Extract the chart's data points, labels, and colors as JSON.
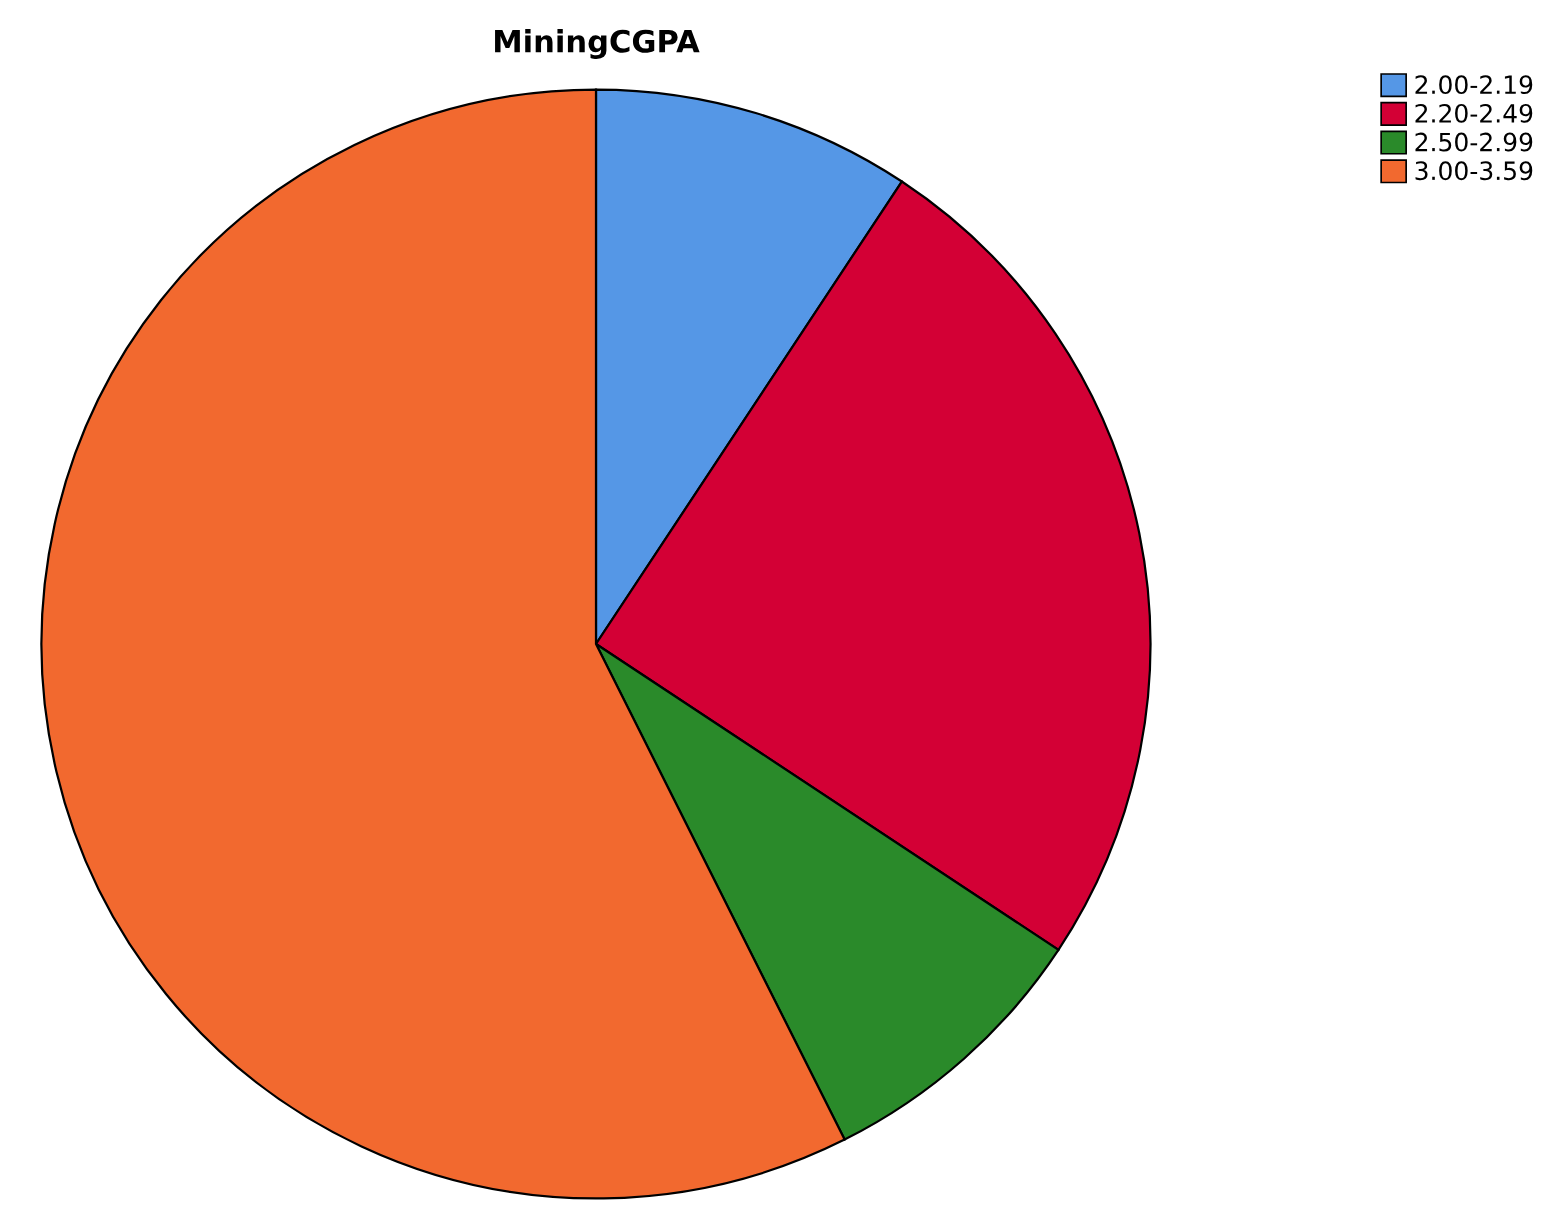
{
  "chart_data": {
    "type": "pie",
    "title": "MiningCGPA",
    "categories": [
      "2.00-2.19",
      "2.20-2.49",
      "2.50-2.99",
      "3.00-3.59"
    ],
    "values": [
      9.3,
      25.0,
      8.3,
      57.4
    ],
    "colors": [
      "#5597e6",
      "#d30035",
      "#2a8a2a",
      "#f2692f"
    ],
    "legend": "top right"
  }
}
